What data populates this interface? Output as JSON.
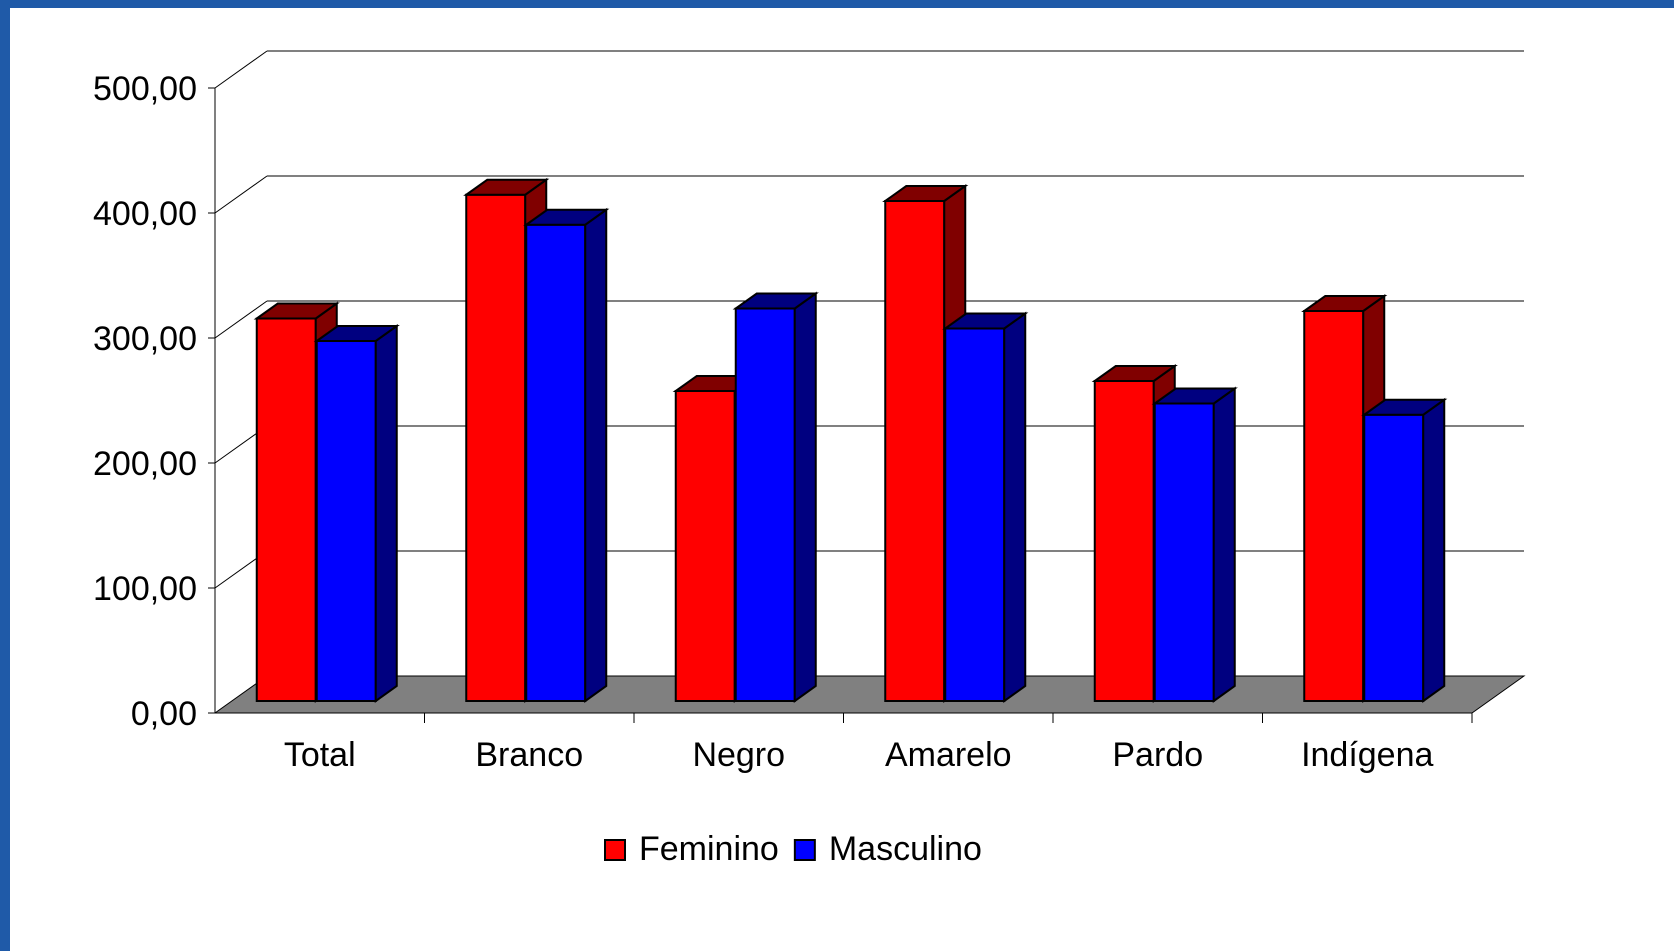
{
  "chart_data": {
    "type": "bar",
    "categories": [
      "Total",
      "Branco",
      "Negro",
      "Amarelo",
      "Pardo",
      "Indígena"
    ],
    "series": [
      {
        "name": "Feminino",
        "values": [
          306,
          405,
          248,
          400,
          256,
          312
        ]
      },
      {
        "name": "Masculino",
        "values": [
          288,
          381,
          314,
          298,
          238,
          229
        ]
      }
    ],
    "ylim": [
      0,
      500
    ],
    "y_ticks": [
      "0,00",
      "100,00",
      "200,00",
      "300,00",
      "400,00",
      "500,00"
    ],
    "title": "",
    "xlabel": "",
    "ylabel": "",
    "grid": true,
    "legend_position": "bottom",
    "three_d": true,
    "colors": {
      "Feminino": {
        "front": "#ff0000",
        "side": "#800000"
      },
      "Masculino": {
        "front": "#0000ff",
        "side": "#000080"
      },
      "floor": "#808080",
      "background_border": "#1f5aa8"
    }
  }
}
